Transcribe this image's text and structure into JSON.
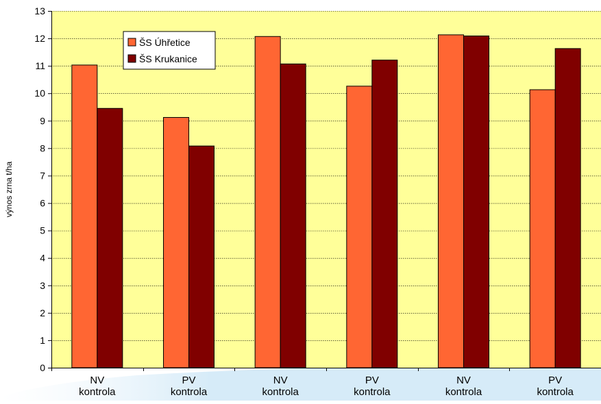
{
  "chart_data": {
    "type": "bar",
    "title": "",
    "xlabel": "",
    "ylabel": "výnos zrna t/ha",
    "ylim": [
      0,
      13
    ],
    "yticks": [
      "0",
      "1",
      "2",
      "3",
      "4",
      "5",
      "6",
      "7",
      "8",
      "9",
      "10",
      "11",
      "12",
      "13"
    ],
    "categories": [
      [
        "NV",
        "kontrola"
      ],
      [
        "PV",
        "kontrola"
      ],
      [
        "NV",
        "kontrola"
      ],
      [
        "PV",
        "kontrola"
      ],
      [
        "NV",
        "kontrola"
      ],
      [
        "PV",
        "kontrola"
      ]
    ],
    "series": [
      {
        "name": "ŠS Úhřetice",
        "color": "#FF6633",
        "values": [
          11.03,
          9.12,
          12.07,
          10.26,
          12.13,
          10.13
        ]
      },
      {
        "name": "ŠS Krukanice",
        "color": "#800000",
        "values": [
          9.45,
          8.08,
          11.07,
          11.21,
          12.09,
          11.63
        ]
      }
    ],
    "grid": true,
    "legend_position": "top-left",
    "plot_background": "#FFFF99",
    "decoration_color": "#D6EBF8"
  }
}
